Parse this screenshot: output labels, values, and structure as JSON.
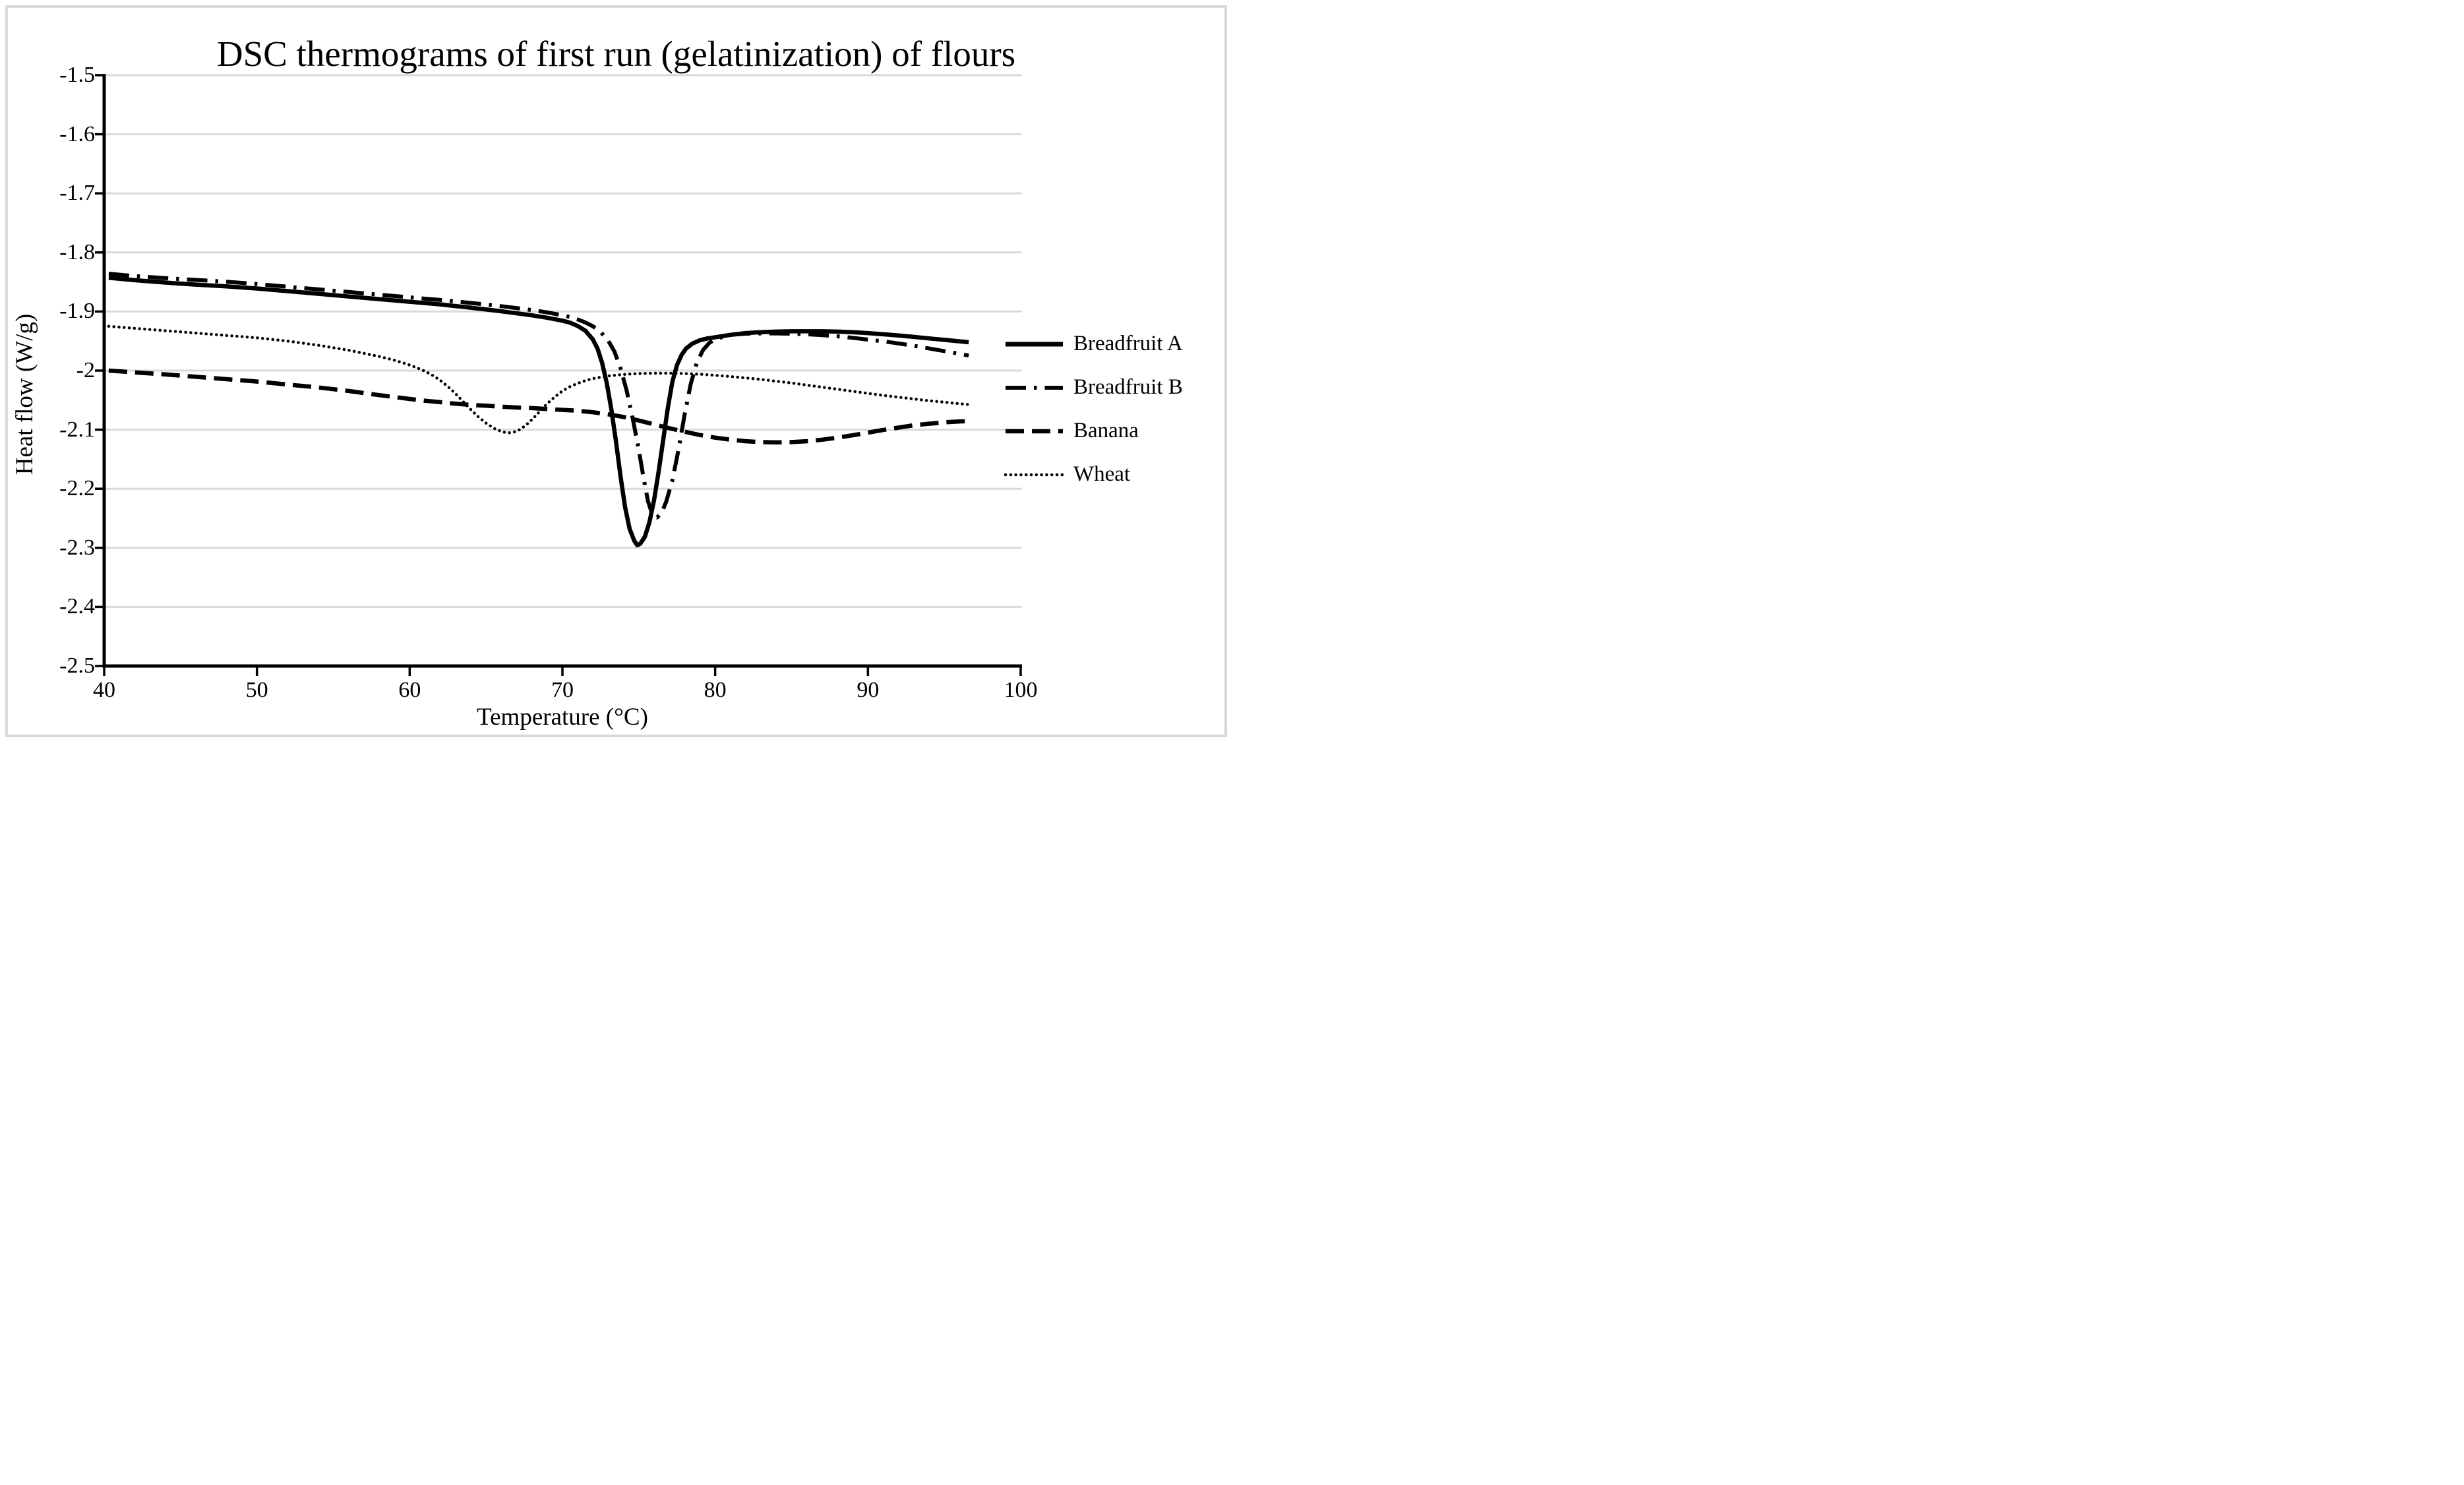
{
  "title": "DSC thermograms of first run (gelatinization) of flours",
  "axes": {
    "x": {
      "label": "Temperature (°C)",
      "min": 40,
      "max": 100,
      "tick_values": [
        40,
        50,
        60,
        70,
        80,
        90,
        100
      ],
      "tick_labels": [
        "40",
        "50",
        "60",
        "70",
        "80",
        "90",
        "100"
      ]
    },
    "y": {
      "label": "Heat flow (W/g)",
      "min": -2.5,
      "max": -1.5,
      "tick_values": [
        -1.5,
        -1.6,
        -1.7,
        -1.8,
        -1.9,
        -2.0,
        -2.1,
        -2.2,
        -2.3,
        -2.4,
        -2.5
      ],
      "tick_labels": [
        "-1.5",
        "-1.6",
        "-1.7",
        "-1.8",
        "-1.9",
        "-2",
        "-2.1",
        "-2.2",
        "-2.3",
        "-2.4",
        "-2.5"
      ]
    }
  },
  "legend": {
    "position": "right",
    "entries": [
      "Breadfruit A",
      "Breadfruit B",
      "Banana",
      "Wheat"
    ]
  },
  "colors": {
    "line": "#000000",
    "gridline": "#d9d9d9",
    "frame_border": "#d9d9d9",
    "background": "#ffffff",
    "text": "#000000"
  },
  "chart_data": {
    "type": "line",
    "title": "DSC thermograms of first run (gelatinization) of flours",
    "xlabel": "Temperature (°C)",
    "ylabel": "Heat flow (W/g)",
    "xlim": [
      40,
      100
    ],
    "ylim": [
      -2.5,
      -1.5
    ],
    "grid": "horizontal",
    "legend_position": "right",
    "series": [
      {
        "name": "Breadfruit A",
        "line_style": "solid",
        "peak_note": "endotherm trough about -2.30 W/g near 75 C",
        "points": [
          [
            40.3,
            -1.843
          ],
          [
            42,
            -1.847
          ],
          [
            44,
            -1.851
          ],
          [
            46,
            -1.8545
          ],
          [
            48,
            -1.8575
          ],
          [
            50,
            -1.861
          ],
          [
            52,
            -1.8655
          ],
          [
            54,
            -1.87
          ],
          [
            56,
            -1.8745
          ],
          [
            58,
            -1.879
          ],
          [
            60,
            -1.8835
          ],
          [
            62,
            -1.888
          ],
          [
            64,
            -1.8935
          ],
          [
            66,
            -1.8995
          ],
          [
            68,
            -1.9065
          ],
          [
            69,
            -1.9105
          ],
          [
            70,
            -1.9155
          ],
          [
            70.5,
            -1.919
          ],
          [
            71,
            -1.9245
          ],
          [
            71.5,
            -1.9325
          ],
          [
            72,
            -1.9475
          ],
          [
            72.3,
            -1.963
          ],
          [
            72.6,
            -1.987
          ],
          [
            72.9,
            -2.021
          ],
          [
            73.2,
            -2.065
          ],
          [
            73.5,
            -2.119
          ],
          [
            73.8,
            -2.178
          ],
          [
            74.1,
            -2.231
          ],
          [
            74.4,
            -2.268
          ],
          [
            74.7,
            -2.288
          ],
          [
            74.9,
            -2.2955
          ],
          [
            75.1,
            -2.293
          ],
          [
            75.4,
            -2.281
          ],
          [
            75.7,
            -2.256
          ],
          [
            76,
            -2.219
          ],
          [
            76.3,
            -2.171
          ],
          [
            76.6,
            -2.117
          ],
          [
            76.9,
            -2.063
          ],
          [
            77.2,
            -2.0185
          ],
          [
            77.5,
            -1.9905
          ],
          [
            77.8,
            -1.9735
          ],
          [
            78.1,
            -1.9625
          ],
          [
            78.5,
            -1.9545
          ],
          [
            79,
            -1.9485
          ],
          [
            79.5,
            -1.9455
          ],
          [
            80,
            -1.9435
          ],
          [
            81,
            -1.9395
          ],
          [
            82,
            -1.9365
          ],
          [
            83,
            -1.935
          ],
          [
            84,
            -1.934
          ],
          [
            85,
            -1.9335
          ],
          [
            86,
            -1.9335
          ],
          [
            87,
            -1.9335
          ],
          [
            88,
            -1.934
          ],
          [
            89,
            -1.935
          ],
          [
            90,
            -1.9365
          ],
          [
            91,
            -1.9385
          ],
          [
            92,
            -1.9405
          ],
          [
            93,
            -1.943
          ],
          [
            94,
            -1.9455
          ],
          [
            95,
            -1.948
          ],
          [
            96,
            -1.9505
          ],
          [
            96.6,
            -1.952
          ]
        ]
      },
      {
        "name": "Breadfruit B",
        "line_style": "dash-dot",
        "peak_note": "endotherm trough about -2.25 W/g near 76 C",
        "points": [
          [
            40.3,
            -1.836
          ],
          [
            42,
            -1.84
          ],
          [
            44,
            -1.8435
          ],
          [
            46,
            -1.8465
          ],
          [
            48,
            -1.8495
          ],
          [
            50,
            -1.8535
          ],
          [
            52,
            -1.858
          ],
          [
            54,
            -1.8625
          ],
          [
            56,
            -1.867
          ],
          [
            58,
            -1.8715
          ],
          [
            60,
            -1.876
          ],
          [
            62,
            -1.8805
          ],
          [
            64,
            -1.8855
          ],
          [
            66,
            -1.891
          ],
          [
            68,
            -1.8975
          ],
          [
            69,
            -1.9015
          ],
          [
            70,
            -1.9065
          ],
          [
            70.5,
            -1.9095
          ],
          [
            71,
            -1.9135
          ],
          [
            71.5,
            -1.9185
          ],
          [
            72,
            -1.925
          ],
          [
            72.5,
            -1.9345
          ],
          [
            73,
            -1.9495
          ],
          [
            73.4,
            -1.9675
          ],
          [
            73.8,
            -1.9955
          ],
          [
            74.2,
            -2.0335
          ],
          [
            74.6,
            -2.081
          ],
          [
            75,
            -2.134
          ],
          [
            75.3,
            -2.18
          ],
          [
            75.6,
            -2.221
          ],
          [
            75.9,
            -2.2445
          ],
          [
            76.2,
            -2.2485
          ],
          [
            76.5,
            -2.2405
          ],
          [
            76.8,
            -2.2215
          ],
          [
            77.2,
            -2.1855
          ],
          [
            77.6,
            -2.1335
          ],
          [
            78,
            -2.0745
          ],
          [
            78.4,
            -2.0225
          ],
          [
            78.8,
            -1.9865
          ],
          [
            79.2,
            -1.9655
          ],
          [
            79.6,
            -1.9535
          ],
          [
            80,
            -1.9465
          ],
          [
            81,
            -1.9395
          ],
          [
            82,
            -1.9375
          ],
          [
            83,
            -1.937
          ],
          [
            84,
            -1.937
          ],
          [
            85,
            -1.9375
          ],
          [
            86,
            -1.9385
          ],
          [
            87,
            -1.94
          ],
          [
            88,
            -1.942
          ],
          [
            89,
            -1.9445
          ],
          [
            90,
            -1.9475
          ],
          [
            91,
            -1.9505
          ],
          [
            92,
            -1.954
          ],
          [
            93,
            -1.958
          ],
          [
            94,
            -1.9625
          ],
          [
            95,
            -1.967
          ],
          [
            96,
            -1.9715
          ],
          [
            96.6,
            -1.9745
          ]
        ]
      },
      {
        "name": "Banana",
        "line_style": "dashed",
        "peak_note": "broad shallow minimum about -2.12 W/g near 84 C",
        "points": [
          [
            40.3,
            -2.0
          ],
          [
            42,
            -2.003
          ],
          [
            44,
            -2.0065
          ],
          [
            46,
            -2.0105
          ],
          [
            48,
            -2.0145
          ],
          [
            50,
            -2.0185
          ],
          [
            52,
            -2.0235
          ],
          [
            54,
            -2.0285
          ],
          [
            56,
            -2.0345
          ],
          [
            58,
            -2.0415
          ],
          [
            60,
            -2.048
          ],
          [
            61,
            -2.051
          ],
          [
            62,
            -2.0535
          ],
          [
            63,
            -2.056
          ],
          [
            64,
            -2.058
          ],
          [
            65,
            -2.0595
          ],
          [
            66,
            -2.061
          ],
          [
            67,
            -2.0625
          ],
          [
            68,
            -2.0635
          ],
          [
            69,
            -2.065
          ],
          [
            70,
            -2.0665
          ],
          [
            71,
            -2.068
          ],
          [
            72,
            -2.0705
          ],
          [
            73,
            -2.074
          ],
          [
            74,
            -2.0785
          ],
          [
            75,
            -2.0845
          ],
          [
            76,
            -2.091
          ],
          [
            77,
            -2.0975
          ],
          [
            78,
            -2.1035
          ],
          [
            79,
            -2.109
          ],
          [
            80,
            -2.1135
          ],
          [
            81,
            -2.117
          ],
          [
            82,
            -2.1195
          ],
          [
            83,
            -2.121
          ],
          [
            84,
            -2.1215
          ],
          [
            85,
            -2.121
          ],
          [
            86,
            -2.1195
          ],
          [
            87,
            -2.117
          ],
          [
            88,
            -2.1135
          ],
          [
            89,
            -2.1095
          ],
          [
            90,
            -2.105
          ],
          [
            91,
            -2.1005
          ],
          [
            92,
            -2.0965
          ],
          [
            93,
            -2.0925
          ],
          [
            94,
            -2.09
          ],
          [
            95,
            -2.0875
          ],
          [
            96,
            -2.086
          ],
          [
            96.6,
            -2.0855
          ]
        ]
      },
      {
        "name": "Wheat",
        "line_style": "dotted",
        "peak_note": "dip to about -2.11 W/g near 66 C",
        "points": [
          [
            40.3,
            -1.925
          ],
          [
            42,
            -1.9285
          ],
          [
            44,
            -1.9325
          ],
          [
            46,
            -1.9365
          ],
          [
            48,
            -1.9405
          ],
          [
            50,
            -1.9445
          ],
          [
            52,
            -1.95
          ],
          [
            54,
            -1.957
          ],
          [
            56,
            -1.9655
          ],
          [
            58,
            -1.976
          ],
          [
            59,
            -1.9825
          ],
          [
            60,
            -1.9905
          ],
          [
            60.5,
            -1.9955
          ],
          [
            61,
            -2.001
          ],
          [
            61.5,
            -2.008
          ],
          [
            62,
            -2.0165
          ],
          [
            62.5,
            -2.027
          ],
          [
            63,
            -2.039
          ],
          [
            63.5,
            -2.0525
          ],
          [
            64,
            -2.066
          ],
          [
            64.5,
            -2.0785
          ],
          [
            65,
            -2.089
          ],
          [
            65.5,
            -2.0975
          ],
          [
            66,
            -2.103
          ],
          [
            66.4,
            -2.1055
          ],
          [
            66.8,
            -2.1045
          ],
          [
            67.2,
            -2.1
          ],
          [
            67.6,
            -2.0925
          ],
          [
            68,
            -2.083
          ],
          [
            68.5,
            -2.0695
          ],
          [
            69,
            -2.056
          ],
          [
            69.5,
            -2.0445
          ],
          [
            70,
            -2.0345
          ],
          [
            70.5,
            -2.027
          ],
          [
            71,
            -2.0215
          ],
          [
            71.5,
            -2.017
          ],
          [
            72,
            -2.0135
          ],
          [
            73,
            -2.009
          ],
          [
            74,
            -2.0065
          ],
          [
            75,
            -2.005
          ],
          [
            76,
            -2.0045
          ],
          [
            77,
            -2.0045
          ],
          [
            78,
            -2.005
          ],
          [
            79,
            -2.006
          ],
          [
            80,
            -2.008
          ],
          [
            81,
            -2.01
          ],
          [
            82,
            -2.0125
          ],
          [
            83,
            -2.015
          ],
          [
            84,
            -2.018
          ],
          [
            85,
            -2.021
          ],
          [
            86,
            -2.0245
          ],
          [
            87,
            -2.028
          ],
          [
            88,
            -2.0315
          ],
          [
            89,
            -2.035
          ],
          [
            90,
            -2.0385
          ],
          [
            91,
            -2.042
          ],
          [
            92,
            -2.045
          ],
          [
            93,
            -2.048
          ],
          [
            94,
            -2.051
          ],
          [
            95,
            -2.0535
          ],
          [
            96,
            -2.056
          ],
          [
            96.6,
            -2.0575
          ]
        ]
      }
    ]
  }
}
